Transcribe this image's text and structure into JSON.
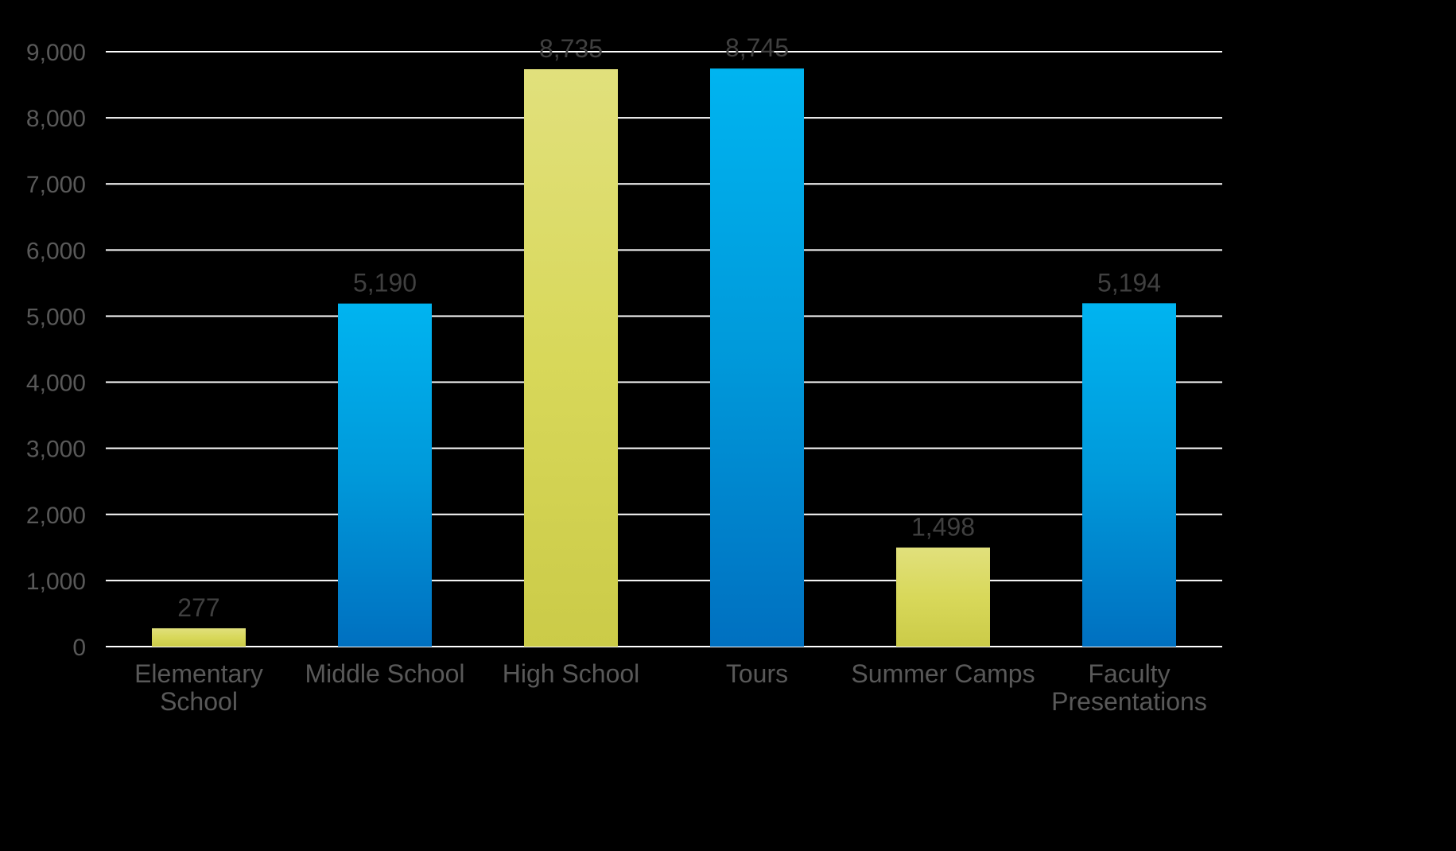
{
  "chart_data": {
    "type": "bar",
    "categories": [
      "Elementary School",
      "Middle School",
      "High School",
      "Tours",
      "Summer Camps",
      "Faculty Presentations"
    ],
    "values": [
      277,
      5190,
      8735,
      8745,
      1498,
      5194
    ],
    "value_labels": [
      "277",
      "5,190",
      "8,735",
      "8,745",
      "1,498",
      "5,194"
    ],
    "bar_colors": [
      "yellow-green",
      "blue",
      "yellow-green",
      "blue",
      "yellow-green",
      "blue"
    ],
    "colors": {
      "yellow-green": "#D6D85A",
      "blue": "#0AA4E4",
      "background": "#000000",
      "grid": "#FFFFFF",
      "text": "#595959"
    },
    "ylim": [
      0,
      9000
    ],
    "yticks": [
      0,
      1000,
      2000,
      3000,
      4000,
      5000,
      6000,
      7000,
      8000,
      9000
    ],
    "ytick_labels": [
      "0",
      "1,000",
      "2,000",
      "3,000",
      "4,000",
      "5,000",
      "6,000",
      "7,000",
      "8,000",
      "9,000"
    ],
    "grid": true,
    "legend": false,
    "title": "",
    "xlabel": "",
    "ylabel": ""
  }
}
